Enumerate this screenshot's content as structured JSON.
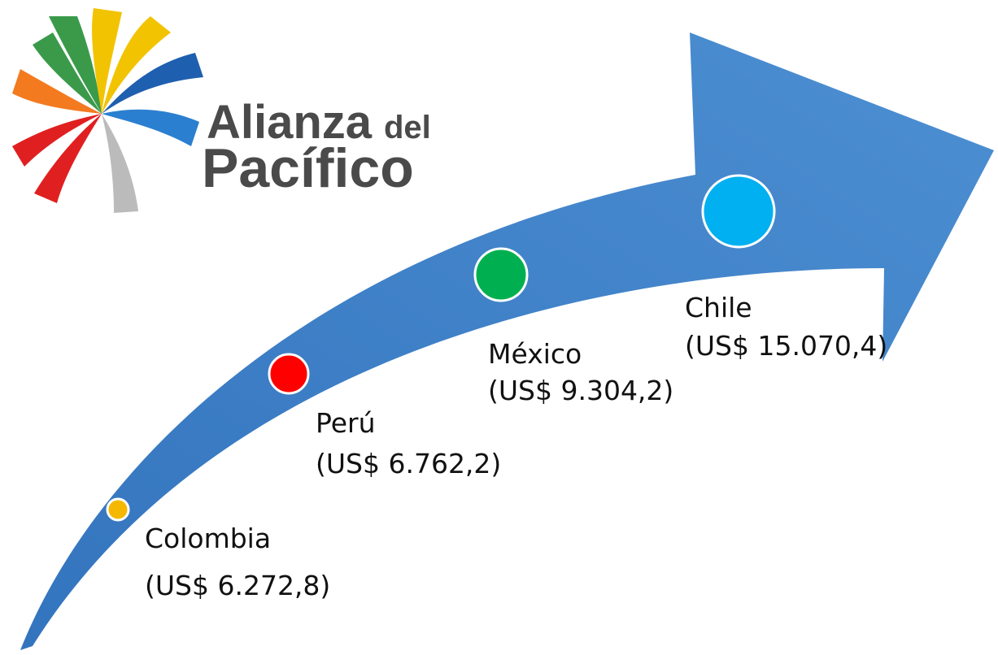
{
  "logo": {
    "line1": "Alianza",
    "line1_small": "del",
    "line2": "Pacífico"
  },
  "items": [
    {
      "name": "Colombia",
      "label": "(US$ 6.272,8)"
    },
    {
      "name": "Perú",
      "label": "(US$ 6.762,2)"
    },
    {
      "name": "México",
      "label": "(US$ 9.304,2)"
    },
    {
      "name": "Chile",
      "label": "(US$ 15.070,4)"
    }
  ]
}
